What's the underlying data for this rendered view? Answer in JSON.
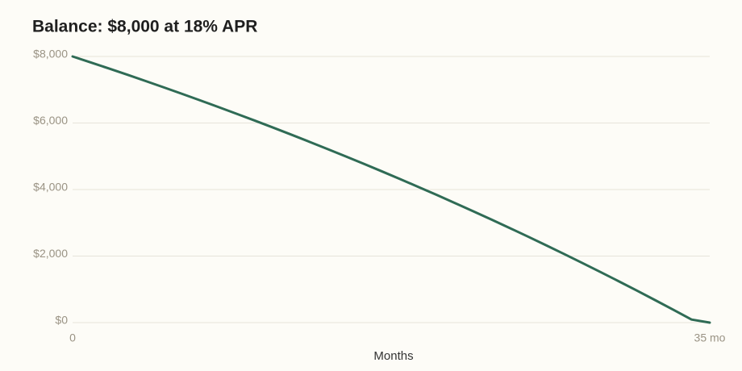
{
  "chart_data": {
    "type": "line",
    "title": "Balance: $8,000 at 18% APR",
    "xlabel": "Months",
    "x": [
      0,
      1,
      2,
      3,
      4,
      5,
      6,
      7,
      8,
      9,
      10,
      11,
      12,
      13,
      14,
      15,
      16,
      17,
      18,
      19,
      20,
      21,
      22,
      23,
      24,
      25,
      26,
      27,
      28,
      29,
      30,
      31,
      32,
      33,
      34,
      35
    ],
    "series": [
      {
        "name": "Balance",
        "color": "#2f6b55",
        "values": [
          8000,
          7820,
          7637,
          7452,
          7264,
          7073,
          6879,
          6682,
          6482,
          6279,
          6074,
          5865,
          5653,
          5437,
          5219,
          4997,
          4772,
          4544,
          4312,
          4077,
          3838,
          3595,
          3349,
          3100,
          2846,
          2589,
          2327,
          2062,
          1793,
          1520,
          1243,
          962,
          676,
          386,
          92,
          0
        ]
      }
    ],
    "xlim": [
      0,
      35
    ],
    "xticks": [
      0,
      {
        "value": 35,
        "label": "35 mo"
      }
    ],
    "ylim": [
      0,
      8000
    ],
    "yticks": [
      {
        "value": 0,
        "label": "$0"
      },
      {
        "value": 2000,
        "label": "$2,000"
      },
      {
        "value": 4000,
        "label": "$4,000"
      },
      {
        "value": 6000,
        "label": "$6,000"
      },
      {
        "value": 8000,
        "label": "$8,000"
      }
    ],
    "grid": true
  }
}
